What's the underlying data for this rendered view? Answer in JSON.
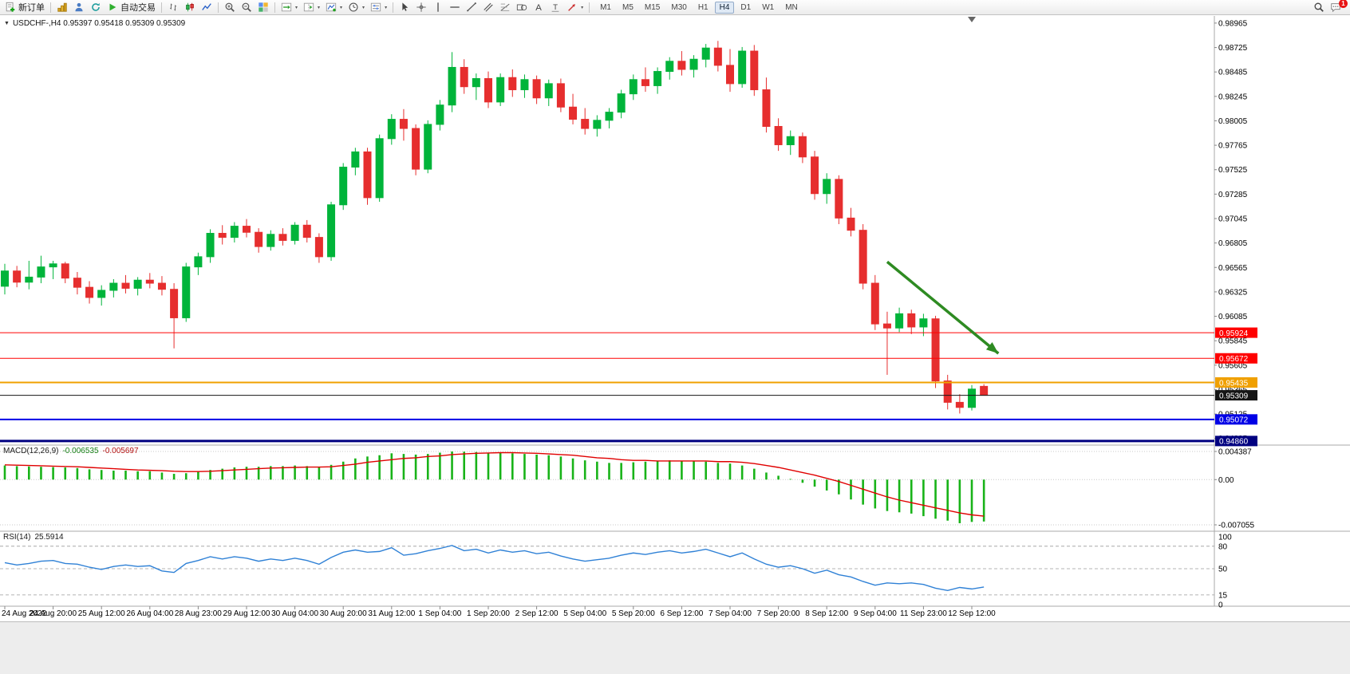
{
  "toolbar": {
    "new_order_label": "新订单",
    "auto_trading_label": "自动交易",
    "timeframes": [
      {
        "label": "M1",
        "active": false
      },
      {
        "label": "M5",
        "active": false
      },
      {
        "label": "M15",
        "active": false
      },
      {
        "label": "M30",
        "active": false
      },
      {
        "label": "H1",
        "active": false
      },
      {
        "label": "H4",
        "active": true
      },
      {
        "label": "D1",
        "active": false
      },
      {
        "label": "W1",
        "active": false
      },
      {
        "label": "MN",
        "active": false
      }
    ],
    "notification_badge": "1",
    "icons": [
      "new-order-icon",
      "market-watch-icon",
      "person-icon",
      "refresh-icon",
      "play-icon",
      "bar-chart-mode-icon",
      "candlestick-mode-icon",
      "line-chart-mode-icon",
      "zoom-in-icon",
      "zoom-out-icon",
      "tile-windows-icon",
      "auto-scroll-icon",
      "chart-shift-icon",
      "indicators-icon",
      "periods-icon",
      "chart-properties-icon",
      "cursor-icon",
      "crosshair-icon",
      "vertical-line-icon",
      "horizontal-line-icon",
      "trendline-icon",
      "channel-icon",
      "fibonacci-icon",
      "shapes-icon",
      "text-icon",
      "label-icon",
      "arrows-icon",
      "search-icon",
      "chat-icon"
    ]
  },
  "chart": {
    "title": "USDCHF-,H4 0.95397 0.95418 0.95309 0.95309"
  },
  "chart_data": {
    "type": "candlestick",
    "symbol": "USDCHF-",
    "period": "H4",
    "current_ohlc": {
      "open": "0.95397",
      "high": "0.95418",
      "low": "0.95309",
      "close": "0.95309"
    },
    "y_range": {
      "min": 0.9482,
      "max": 0.99035
    },
    "price_axis_labels": [
      "0.98965",
      "0.98725",
      "0.98485",
      "0.98245",
      "0.98005",
      "0.97765",
      "0.97525",
      "0.97285",
      "0.97045",
      "0.96805",
      "0.96565",
      "0.96325",
      "0.96085",
      "0.95845",
      "0.95605",
      "0.95365",
      "0.95125",
      "0.94885"
    ],
    "time_labels": [
      {
        "index": 0,
        "text": "24 Aug 2022"
      },
      {
        "index": 4,
        "text": "24 Aug 20:00"
      },
      {
        "index": 8,
        "text": "25 Aug 12:00"
      },
      {
        "index": 12,
        "text": "26 Aug 04:00"
      },
      {
        "index": 16,
        "text": "28 Aug 23:00"
      },
      {
        "index": 20,
        "text": "29 Aug 12:00"
      },
      {
        "index": 24,
        "text": "30 Aug 04:00"
      },
      {
        "index": 28,
        "text": "30 Aug 20:00"
      },
      {
        "index": 32,
        "text": "31 Aug 12:00"
      },
      {
        "index": 36,
        "text": "1 Sep 04:00"
      },
      {
        "index": 40,
        "text": "1 Sep 20:00"
      },
      {
        "index": 44,
        "text": "2 Sep 12:00"
      },
      {
        "index": 48,
        "text": "5 Sep 04:00"
      },
      {
        "index": 52,
        "text": "5 Sep 20:00"
      },
      {
        "index": 56,
        "text": "6 Sep 12:00"
      },
      {
        "index": 60,
        "text": "7 Sep 04:00"
      },
      {
        "index": 64,
        "text": "7 Sep 20:00"
      },
      {
        "index": 68,
        "text": "8 Sep 12:00"
      },
      {
        "index": 72,
        "text": "9 Sep 04:00"
      },
      {
        "index": 76,
        "text": "11 Sep 23:00"
      },
      {
        "index": 80,
        "text": "12 Sep 12:00"
      }
    ],
    "colors": {
      "up": "#00b43a",
      "down": "#e62e2e",
      "background": "#ffffff"
    },
    "candles": [
      [
        0.9638,
        0.966,
        0.963,
        0.9653
      ],
      [
        0.9653,
        0.9658,
        0.9637,
        0.9642
      ],
      [
        0.9642,
        0.9663,
        0.9635,
        0.9647
      ],
      [
        0.9647,
        0.9668,
        0.9641,
        0.9657
      ],
      [
        0.9657,
        0.9663,
        0.9645,
        0.966
      ],
      [
        0.966,
        0.9662,
        0.9641,
        0.9646
      ],
      [
        0.9646,
        0.9652,
        0.963,
        0.9637
      ],
      [
        0.9637,
        0.9643,
        0.9621,
        0.9627
      ],
      [
        0.9627,
        0.9639,
        0.9619,
        0.9634
      ],
      [
        0.9634,
        0.9645,
        0.9627,
        0.9641
      ],
      [
        0.9641,
        0.9649,
        0.9631,
        0.9636
      ],
      [
        0.9636,
        0.9647,
        0.9629,
        0.9644
      ],
      [
        0.9644,
        0.9651,
        0.9636,
        0.9641
      ],
      [
        0.9641,
        0.9648,
        0.9629,
        0.9635
      ],
      [
        0.9635,
        0.9641,
        0.9577,
        0.9607
      ],
      [
        0.9607,
        0.9661,
        0.9603,
        0.9657
      ],
      [
        0.9657,
        0.9671,
        0.9649,
        0.9667
      ],
      [
        0.9667,
        0.9694,
        0.9661,
        0.969
      ],
      [
        0.969,
        0.9698,
        0.9679,
        0.9686
      ],
      [
        0.9686,
        0.9701,
        0.9681,
        0.9697
      ],
      [
        0.9697,
        0.9704,
        0.9686,
        0.9691
      ],
      [
        0.9691,
        0.9695,
        0.9671,
        0.9677
      ],
      [
        0.9677,
        0.9693,
        0.9673,
        0.9689
      ],
      [
        0.9689,
        0.9695,
        0.9678,
        0.9683
      ],
      [
        0.9683,
        0.9701,
        0.9679,
        0.9698
      ],
      [
        0.9698,
        0.9703,
        0.9681,
        0.9686
      ],
      [
        0.9686,
        0.969,
        0.9661,
        0.9667
      ],
      [
        0.9667,
        0.9721,
        0.9663,
        0.9718
      ],
      [
        0.9718,
        0.9759,
        0.9713,
        0.9755
      ],
      [
        0.9755,
        0.9774,
        0.9747,
        0.977
      ],
      [
        0.977,
        0.9774,
        0.9718,
        0.9725
      ],
      [
        0.9725,
        0.9787,
        0.9721,
        0.9783
      ],
      [
        0.9783,
        0.9807,
        0.9777,
        0.9802
      ],
      [
        0.9802,
        0.9812,
        0.9781,
        0.9793
      ],
      [
        0.9793,
        0.9797,
        0.9747,
        0.9753
      ],
      [
        0.9753,
        0.9801,
        0.9749,
        0.9797
      ],
      [
        0.9797,
        0.9821,
        0.9791,
        0.9816
      ],
      [
        0.9816,
        0.9868,
        0.9809,
        0.9853
      ],
      [
        0.9853,
        0.9861,
        0.9827,
        0.9834
      ],
      [
        0.9834,
        0.9847,
        0.9821,
        0.9842
      ],
      [
        0.9842,
        0.9849,
        0.9813,
        0.9819
      ],
      [
        0.9819,
        0.9847,
        0.9815,
        0.9843
      ],
      [
        0.9843,
        0.9851,
        0.9824,
        0.9831
      ],
      [
        0.9831,
        0.9846,
        0.9823,
        0.9841
      ],
      [
        0.9841,
        0.9845,
        0.9817,
        0.9823
      ],
      [
        0.9823,
        0.9841,
        0.9815,
        0.9837
      ],
      [
        0.9837,
        0.9842,
        0.9809,
        0.9814
      ],
      [
        0.9814,
        0.9827,
        0.9797,
        0.9802
      ],
      [
        0.9802,
        0.9813,
        0.9787,
        0.9793
      ],
      [
        0.9793,
        0.9806,
        0.9785,
        0.9801
      ],
      [
        0.9801,
        0.9813,
        0.9793,
        0.9809
      ],
      [
        0.9809,
        0.9831,
        0.9803,
        0.9827
      ],
      [
        0.9827,
        0.9846,
        0.9821,
        0.9841
      ],
      [
        0.9841,
        0.9853,
        0.9829,
        0.9835
      ],
      [
        0.9835,
        0.9853,
        0.9827,
        0.9849
      ],
      [
        0.9849,
        0.9863,
        0.9841,
        0.9859
      ],
      [
        0.9859,
        0.9869,
        0.9845,
        0.9851
      ],
      [
        0.9851,
        0.9865,
        0.9843,
        0.9861
      ],
      [
        0.9861,
        0.9876,
        0.9853,
        0.9872
      ],
      [
        0.9872,
        0.9879,
        0.9849,
        0.9855
      ],
      [
        0.9855,
        0.9871,
        0.9829,
        0.9837
      ],
      [
        0.9837,
        0.9873,
        0.9833,
        0.9869
      ],
      [
        0.9869,
        0.9875,
        0.9825,
        0.9831
      ],
      [
        0.9831,
        0.9843,
        0.9789,
        0.9795
      ],
      [
        0.9795,
        0.9803,
        0.9771,
        0.9777
      ],
      [
        0.9777,
        0.9791,
        0.9767,
        0.9785
      ],
      [
        0.9785,
        0.9789,
        0.9759,
        0.9765
      ],
      [
        0.9765,
        0.9771,
        0.9723,
        0.9729
      ],
      [
        0.9729,
        0.9749,
        0.9719,
        0.9743
      ],
      [
        0.9743,
        0.9747,
        0.9699,
        0.9705
      ],
      [
        0.9705,
        0.9715,
        0.9687,
        0.9693
      ],
      [
        0.9693,
        0.9699,
        0.9635,
        0.9641
      ],
      [
        0.9641,
        0.9649,
        0.9595,
        0.9601
      ],
      [
        0.9601,
        0.9613,
        0.9551,
        0.9597
      ],
      [
        0.9597,
        0.9617,
        0.9593,
        0.9611
      ],
      [
        0.9611,
        0.9615,
        0.9591,
        0.9598
      ],
      [
        0.9598,
        0.9611,
        0.9589,
        0.9606
      ],
      [
        0.9606,
        0.9609,
        0.9538,
        0.9545
      ],
      [
        0.9545,
        0.9551,
        0.9517,
        0.9524
      ],
      [
        0.9524,
        0.9532,
        0.9513,
        0.9519
      ],
      [
        0.9519,
        0.9541,
        0.9516,
        0.9537
      ],
      [
        0.95397,
        0.95418,
        0.95309,
        0.95309
      ]
    ],
    "levels": [
      {
        "price": 0.95924,
        "label": "0.95924",
        "color": "#ff0000",
        "width": 1
      },
      {
        "price": 0.95672,
        "label": "0.95672",
        "color": "#ff0000",
        "width": 1
      },
      {
        "price": 0.95435,
        "label": "0.95435",
        "color": "#f0a000",
        "width": 2
      },
      {
        "price": 0.95309,
        "label": "0.95309",
        "color": "#151515",
        "width": 1
      },
      {
        "price": 0.95072,
        "label": "0.95072",
        "color": "#0000e6",
        "width": 2
      },
      {
        "price": 0.9486,
        "label": "0.94860",
        "color": "#000080",
        "width": 3
      }
    ],
    "arrow": {
      "from_index": 73,
      "from_price": 0.9662,
      "to_index": 82.2,
      "to_price": 0.9572,
      "color": "#2e8b22"
    },
    "macd": {
      "name": "MACD(12,26,9)",
      "main_value": "-0.006535",
      "signal_value": "-0.005697",
      "scale_max": 0.004387,
      "scale_min": -0.007055,
      "axis_labels": [
        {
          "value": 0.004387,
          "text": "0.004387"
        },
        {
          "value": 0,
          "text": "0.00"
        },
        {
          "value": -0.007055,
          "text": "-0.007055"
        }
      ],
      "hist_color": "#18b318",
      "signal_color": "#e00000",
      "main": [
        0.0022,
        0.0021,
        0.00205,
        0.002,
        0.00195,
        0.0019,
        0.0018,
        0.0016,
        0.0015,
        0.0014,
        0.0014,
        0.0013,
        0.0013,
        0.0011,
        0.0009,
        0.001,
        0.0012,
        0.0015,
        0.0017,
        0.0019,
        0.002,
        0.002,
        0.0021,
        0.0021,
        0.0022,
        0.0021,
        0.002,
        0.0023,
        0.0028,
        0.0033,
        0.0036,
        0.0038,
        0.0041,
        0.004,
        0.0039,
        0.004,
        0.0042,
        0.00438,
        0.00435,
        0.0043,
        0.0042,
        0.0042,
        0.0041,
        0.004,
        0.0039,
        0.0038,
        0.0036,
        0.0033,
        0.003,
        0.0028,
        0.0026,
        0.0026,
        0.0027,
        0.0028,
        0.0029,
        0.003,
        0.0029,
        0.0029,
        0.0028,
        0.0026,
        0.0025,
        0.0022,
        0.0017,
        0.0011,
        0.0006,
        0.0001,
        -0.0005,
        -0.0011,
        -0.0017,
        -0.0023,
        -0.0031,
        -0.0039,
        -0.0045,
        -0.0049,
        -0.0051,
        -0.0053,
        -0.0057,
        -0.0061,
        -0.0064,
        -0.0068,
        -0.0066,
        -0.006535
      ],
      "signal": [
        0.0023,
        0.00225,
        0.0022,
        0.00215,
        0.0021,
        0.00205,
        0.002,
        0.0019,
        0.0018,
        0.0017,
        0.0016,
        0.0015,
        0.00145,
        0.0014,
        0.0013,
        0.00125,
        0.00125,
        0.0013,
        0.0014,
        0.0015,
        0.0016,
        0.0017,
        0.0018,
        0.00185,
        0.0019,
        0.00195,
        0.00195,
        0.002,
        0.0022,
        0.0024,
        0.0027,
        0.0029,
        0.0031,
        0.0033,
        0.0034,
        0.0036,
        0.0037,
        0.0039,
        0.004,
        0.0041,
        0.00415,
        0.0042,
        0.0042,
        0.00415,
        0.0041,
        0.004,
        0.0039,
        0.0038,
        0.0036,
        0.0034,
        0.0033,
        0.0031,
        0.003,
        0.003,
        0.0029,
        0.0029,
        0.0029,
        0.0029,
        0.0029,
        0.0028,
        0.0028,
        0.0027,
        0.0025,
        0.0022,
        0.0019,
        0.0015,
        0.0011,
        0.0007,
        0.0002,
        -0.0003,
        -0.0009,
        -0.0015,
        -0.0021,
        -0.0027,
        -0.0032,
        -0.0036,
        -0.004,
        -0.0044,
        -0.0048,
        -0.0052,
        -0.0055,
        -0.005697
      ]
    },
    "rsi": {
      "name": "RSI(14)",
      "value": "25.5914",
      "color": "#2f81d6",
      "scale": {
        "min": 0,
        "max": 100
      },
      "levels": [
        80,
        50,
        15
      ],
      "axis_labels": [
        {
          "value": 100,
          "text": "100"
        },
        {
          "value": 80,
          "text": "80"
        },
        {
          "value": 50,
          "text": "50"
        },
        {
          "value": 15,
          "text": "15"
        },
        {
          "value": 0,
          "text": "0"
        }
      ],
      "values": [
        58,
        55,
        57,
        60,
        61,
        57,
        56,
        52,
        49,
        53,
        55,
        53,
        54,
        47,
        45,
        57,
        61,
        66,
        63,
        66,
        64,
        60,
        63,
        61,
        64,
        61,
        56,
        65,
        72,
        75,
        72,
        73,
        78,
        68,
        70,
        74,
        77,
        81,
        74,
        76,
        71,
        75,
        72,
        74,
        70,
        72,
        67,
        63,
        60,
        62,
        64,
        68,
        71,
        69,
        72,
        74,
        71,
        73,
        76,
        71,
        66,
        71,
        63,
        56,
        52,
        54,
        50,
        44,
        48,
        42,
        39,
        33,
        28,
        31,
        30,
        31,
        29,
        24,
        21,
        25,
        23,
        25.59
      ]
    }
  }
}
